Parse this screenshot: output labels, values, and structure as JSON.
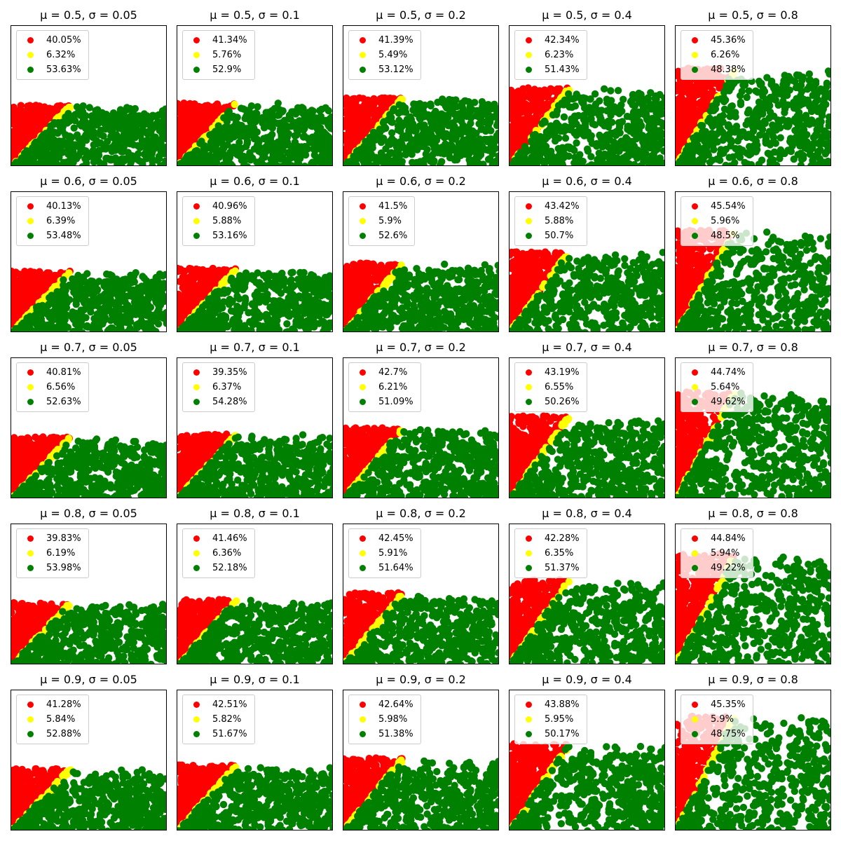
{
  "colors": {
    "red": "#ff0000",
    "yellow": "#ffff00",
    "green": "#008000"
  },
  "chart_data": [
    {
      "type": "scatter",
      "title": "μ = 0.5, σ = 0.05",
      "mu": 0.5,
      "sigma": 0.05,
      "legend": [
        "40.05%",
        "6.32%",
        "53.63%"
      ],
      "legend_placement": "upper-left",
      "grid": false
    },
    {
      "type": "scatter",
      "title": "μ = 0.5, σ = 0.1",
      "mu": 0.5,
      "sigma": 0.1,
      "legend": [
        "41.34%",
        "5.76%",
        "52.9%"
      ],
      "legend_placement": "upper-left",
      "grid": false
    },
    {
      "type": "scatter",
      "title": "μ = 0.5, σ = 0.2",
      "mu": 0.5,
      "sigma": 0.2,
      "legend": [
        "41.39%",
        "5.49%",
        "53.12%"
      ],
      "legend_placement": "upper-left",
      "grid": false
    },
    {
      "type": "scatter",
      "title": "μ = 0.5, σ = 0.4",
      "mu": 0.5,
      "sigma": 0.4,
      "legend": [
        "42.34%",
        "6.23%",
        "51.43%"
      ],
      "legend_placement": "upper-left",
      "grid": false
    },
    {
      "type": "scatter",
      "title": "μ = 0.5, σ = 0.8",
      "mu": 0.5,
      "sigma": 0.8,
      "legend": [
        "45.36%",
        "6.26%",
        "48.38%"
      ],
      "legend_placement": "upper-left",
      "grid": false
    },
    {
      "type": "scatter",
      "title": "μ = 0.6, σ = 0.05",
      "mu": 0.6,
      "sigma": 0.05,
      "legend": [
        "40.13%",
        "6.39%",
        "53.48%"
      ],
      "legend_placement": "upper-left",
      "grid": false
    },
    {
      "type": "scatter",
      "title": "μ = 0.6, σ = 0.1",
      "mu": 0.6,
      "sigma": 0.1,
      "legend": [
        "40.96%",
        "5.88%",
        "53.16%"
      ],
      "legend_placement": "upper-left",
      "grid": false
    },
    {
      "type": "scatter",
      "title": "μ = 0.6, σ = 0.2",
      "mu": 0.6,
      "sigma": 0.2,
      "legend": [
        "41.5%",
        "5.9%",
        "52.6%"
      ],
      "legend_placement": "upper-left",
      "grid": false
    },
    {
      "type": "scatter",
      "title": "μ = 0.6, σ = 0.4",
      "mu": 0.6,
      "sigma": 0.4,
      "legend": [
        "43.42%",
        "5.88%",
        "50.7%"
      ],
      "legend_placement": "upper-left",
      "grid": false
    },
    {
      "type": "scatter",
      "title": "μ = 0.6, σ = 0.8",
      "mu": 0.6,
      "sigma": 0.8,
      "legend": [
        "45.54%",
        "5.96%",
        "48.5%"
      ],
      "legend_placement": "upper-left",
      "grid": false
    },
    {
      "type": "scatter",
      "title": "μ = 0.7, σ = 0.05",
      "mu": 0.7,
      "sigma": 0.05,
      "legend": [
        "40.81%",
        "6.56%",
        "52.63%"
      ],
      "legend_placement": "upper-left",
      "grid": false
    },
    {
      "type": "scatter",
      "title": "μ = 0.7, σ = 0.1",
      "mu": 0.7,
      "sigma": 0.1,
      "legend": [
        "39.35%",
        "6.37%",
        "54.28%"
      ],
      "legend_placement": "upper-left",
      "grid": false
    },
    {
      "type": "scatter",
      "title": "μ = 0.7, σ = 0.2",
      "mu": 0.7,
      "sigma": 0.2,
      "legend": [
        "42.7%",
        "6.21%",
        "51.09%"
      ],
      "legend_placement": "upper-left",
      "grid": false
    },
    {
      "type": "scatter",
      "title": "μ = 0.7, σ = 0.4",
      "mu": 0.7,
      "sigma": 0.4,
      "legend": [
        "43.19%",
        "6.55%",
        "50.26%"
      ],
      "legend_placement": "upper-left",
      "grid": false
    },
    {
      "type": "scatter",
      "title": "μ = 0.7, σ = 0.8",
      "mu": 0.7,
      "sigma": 0.8,
      "legend": [
        "44.74%",
        "5.64%",
        "49.62%"
      ],
      "legend_placement": "upper-left",
      "grid": false
    },
    {
      "type": "scatter",
      "title": "μ = 0.8, σ = 0.05",
      "mu": 0.8,
      "sigma": 0.05,
      "legend": [
        "39.83%",
        "6.19%",
        "53.98%"
      ],
      "legend_placement": "upper-left",
      "grid": false
    },
    {
      "type": "scatter",
      "title": "μ = 0.8, σ = 0.1",
      "mu": 0.8,
      "sigma": 0.1,
      "legend": [
        "41.46%",
        "6.36%",
        "52.18%"
      ],
      "legend_placement": "upper-left",
      "grid": false
    },
    {
      "type": "scatter",
      "title": "μ = 0.8, σ = 0.2",
      "mu": 0.8,
      "sigma": 0.2,
      "legend": [
        "42.45%",
        "5.91%",
        "51.64%"
      ],
      "legend_placement": "upper-left",
      "grid": false
    },
    {
      "type": "scatter",
      "title": "μ = 0.8, σ = 0.4",
      "mu": 0.8,
      "sigma": 0.4,
      "legend": [
        "42.28%",
        "6.35%",
        "51.37%"
      ],
      "legend_placement": "upper-left",
      "grid": false
    },
    {
      "type": "scatter",
      "title": "μ = 0.8, σ = 0.8",
      "mu": 0.8,
      "sigma": 0.8,
      "legend": [
        "44.84%",
        "5.94%",
        "49.22%"
      ],
      "legend_placement": "upper-left",
      "grid": false
    },
    {
      "type": "scatter",
      "title": "μ = 0.9, σ = 0.05",
      "mu": 0.9,
      "sigma": 0.05,
      "legend": [
        "41.28%",
        "5.84%",
        "52.88%"
      ],
      "legend_placement": "upper-left",
      "grid": false
    },
    {
      "type": "scatter",
      "title": "μ = 0.9, σ = 0.1",
      "mu": 0.9,
      "sigma": 0.1,
      "legend": [
        "42.51%",
        "5.82%",
        "51.67%"
      ],
      "legend_placement": "upper-left",
      "grid": false
    },
    {
      "type": "scatter",
      "title": "μ = 0.9, σ = 0.2",
      "mu": 0.9,
      "sigma": 0.2,
      "legend": [
        "42.64%",
        "5.98%",
        "51.38%"
      ],
      "legend_placement": "upper-left",
      "grid": false
    },
    {
      "type": "scatter",
      "title": "μ = 0.9, σ = 0.4",
      "mu": 0.9,
      "sigma": 0.4,
      "legend": [
        "43.88%",
        "5.95%",
        "50.17%"
      ],
      "legend_placement": "upper-left",
      "grid": false
    },
    {
      "type": "scatter",
      "title": "μ = 0.9, σ = 0.8",
      "mu": 0.9,
      "sigma": 0.8,
      "legend": [
        "45.35%",
        "5.9%",
        "48.75%"
      ],
      "legend_placement": "upper-left",
      "grid": false
    }
  ]
}
